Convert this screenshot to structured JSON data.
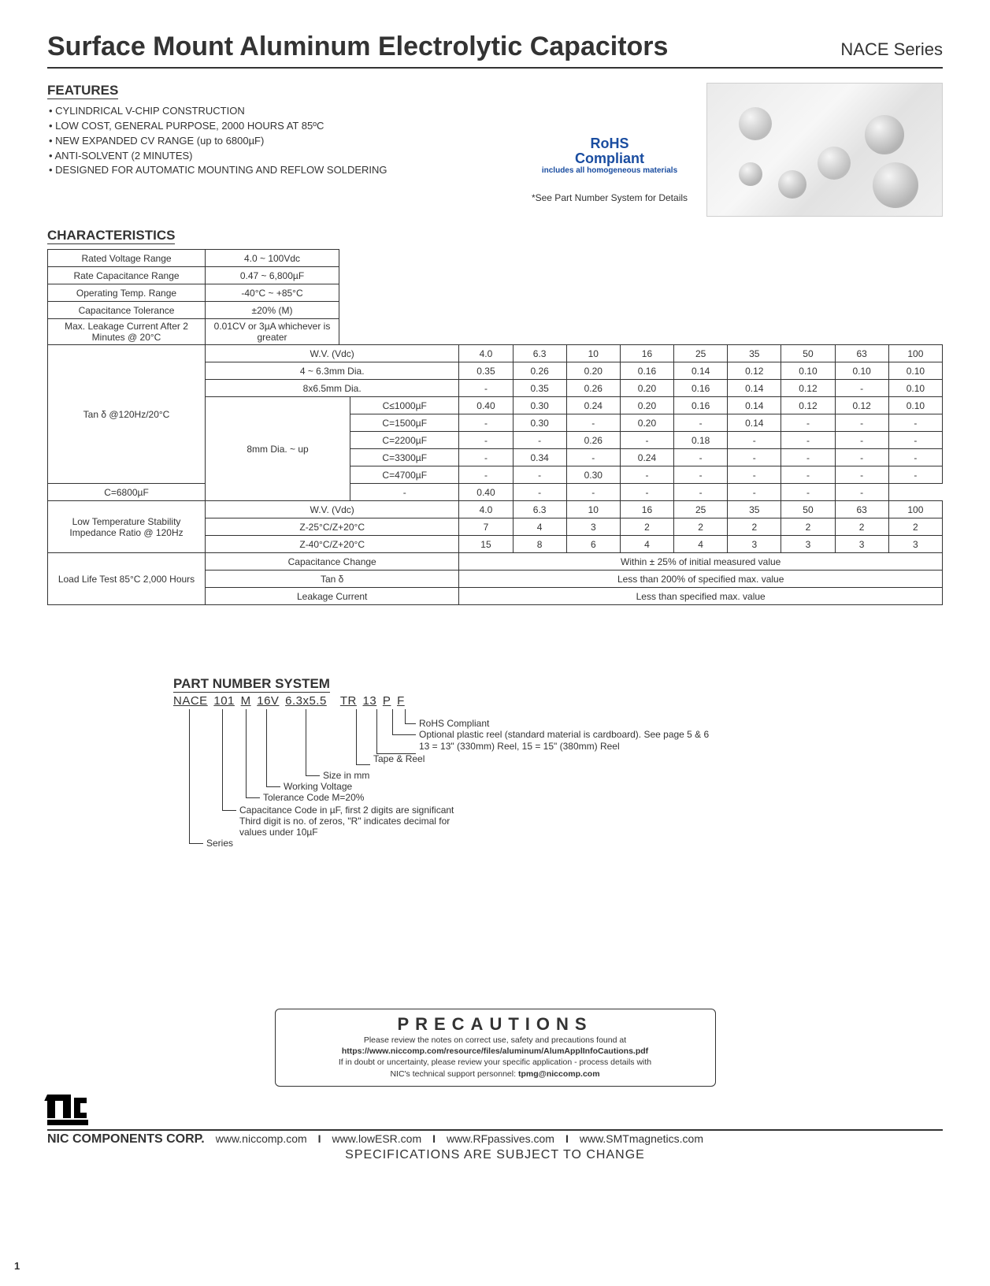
{
  "header": {
    "title": "Surface Mount Aluminum Electrolytic Capacitors",
    "series": "NACE Series"
  },
  "features": {
    "heading": "FEATURES",
    "items": [
      "CYLINDRICAL V-CHIP CONSTRUCTION",
      "LOW COST, GENERAL PURPOSE, 2000 HOURS AT 85ºC",
      "NEW EXPANDED CV RANGE (up to 6800µF)",
      "ANTI-SOLVENT (2 MINUTES)",
      "DESIGNED FOR AUTOMATIC MOUNTING AND REFLOW SOLDERING"
    ]
  },
  "rohs": {
    "line1": "RoHS",
    "line2": "Compliant",
    "sub": "includes all homogeneous materials",
    "foot": "*See Part Number System for Details"
  },
  "characteristics": {
    "heading": "CHARACTERISTICS",
    "basics": [
      {
        "label": "Rated Voltage Range",
        "value": "4.0 ~ 100Vdc"
      },
      {
        "label": "Rate Capacitance Range",
        "value": "0.47 ~ 6,800µF"
      },
      {
        "label": "Operating Temp. Range",
        "value": "-40°C ~ +85°C"
      },
      {
        "label": "Capacitance Tolerance",
        "value": "±20% (M)"
      },
      {
        "label": "Max. Leakage Current After 2 Minutes @ 20°C",
        "value": "0.01CV or 3µA whichever is greater"
      }
    ],
    "wv_headers": [
      "4.0",
      "6.3",
      "10",
      "16",
      "25",
      "35",
      "50",
      "63",
      "100"
    ],
    "tan": {
      "label": "Tan δ @120Hz/20°C",
      "wv_row_label": "W.V. (Vdc)",
      "dia1": {
        "label": "4 ~ 6.3mm Dia.",
        "vals": [
          "0.35",
          "0.26",
          "0.20",
          "0.16",
          "0.14",
          "0.12",
          "0.10",
          "0.10",
          "0.10"
        ]
      },
      "dia2": {
        "label": "8x6.5mm Dia.",
        "vals": [
          "-",
          "0.35",
          "0.26",
          "0.20",
          "0.16",
          "0.14",
          "0.12",
          "-",
          "0.10"
        ]
      },
      "dia3_label": "8mm Dia. ~ up",
      "dia3_rows": [
        {
          "c": "C≤1000µF",
          "vals": [
            "0.40",
            "0.30",
            "0.24",
            "0.20",
            "0.16",
            "0.14",
            "0.12",
            "0.12",
            "0.10"
          ]
        },
        {
          "c": "C=1500µF",
          "vals": [
            "-",
            "0.30",
            "-",
            "0.20",
            "-",
            "0.14",
            "-",
            "-",
            "-"
          ]
        },
        {
          "c": "C=2200µF",
          "vals": [
            "-",
            "-",
            "0.26",
            "-",
            "0.18",
            "-",
            "-",
            "-",
            "-"
          ]
        },
        {
          "c": "C=3300µF",
          "vals": [
            "-",
            "0.34",
            "-",
            "0.24",
            "-",
            "-",
            "-",
            "-",
            "-"
          ]
        },
        {
          "c": "C=4700µF",
          "vals": [
            "-",
            "-",
            "0.30",
            "-",
            "-",
            "-",
            "-",
            "-",
            "-"
          ]
        },
        {
          "c": "C=6800µF",
          "vals": [
            "-",
            "0.40",
            "-",
            "-",
            "-",
            "-",
            "-",
            "-",
            "-"
          ]
        }
      ]
    },
    "lowtemp": {
      "label": "Low Temperature Stability Impedance Ratio @ 120Hz",
      "wv_row_label": "W.V. (Vdc)",
      "r1": {
        "label": "Z-25°C/Z+20°C",
        "vals": [
          "7",
          "4",
          "3",
          "2",
          "2",
          "2",
          "2",
          "2",
          "2"
        ]
      },
      "r2": {
        "label": "Z-40°C/Z+20°C",
        "vals": [
          "15",
          "8",
          "6",
          "4",
          "4",
          "3",
          "3",
          "3",
          "3"
        ]
      }
    },
    "loadlife": {
      "label": "Load Life Test 85°C 2,000 Hours",
      "rows": [
        {
          "param": "Capacitance Change",
          "val": "Within ± 25% of initial measured value"
        },
        {
          "param": "Tan δ",
          "val": "Less than 200% of specified max. value"
        },
        {
          "param": "Leakage Current",
          "val": "Less than specified max. value"
        }
      ]
    }
  },
  "partnum": {
    "heading": "PART NUMBER SYSTEM",
    "segments": [
      "NACE",
      "101",
      "M",
      "16V",
      "6.3x5.5",
      "TR",
      "13",
      "P",
      "F"
    ],
    "desc": {
      "f": "RoHS Compliant",
      "p": "Optional plastic reel (standard material is cardboard). See page 5 & 6",
      "13": "13 = 13\" (330mm) Reel, 15 = 15\" (380mm) Reel",
      "tr": "Tape & Reel",
      "size": "Size in mm",
      "wv": "Working Voltage",
      "tol": "Tolerance Code M=20%",
      "cap1": "Capacitance Code in µF, first 2 digits are significant",
      "cap2": "Third digit is no. of zeros, \"R\" indicates decimal for",
      "cap3": "values under 10µF",
      "series": "Series"
    }
  },
  "precautions": {
    "title": "PRECAUTIONS",
    "l1": "Please review the notes on correct use, safety and precautions found at",
    "l2": "https://www.niccomp.com/resource/files/aluminum/AlumApplInfoCautions.pdf",
    "l3": "If in doubt or uncertainty, please review your specific application - process details with",
    "l4a": "NIC's technical support personnel: ",
    "l4b": "tpmg@niccomp.com"
  },
  "footer": {
    "corp": "NIC COMPONENTS CORP.",
    "sites": [
      "www.niccomp.com",
      "www.lowESR.com",
      "www.RFpassives.com",
      "www.SMTmagnetics.com"
    ],
    "sub": "SPECIFICATIONS ARE SUBJECT TO CHANGE",
    "page": "1"
  },
  "colors": {
    "text": "#333333",
    "rohs": "#1a4da0",
    "border": "#333333",
    "bg": "#ffffff"
  }
}
